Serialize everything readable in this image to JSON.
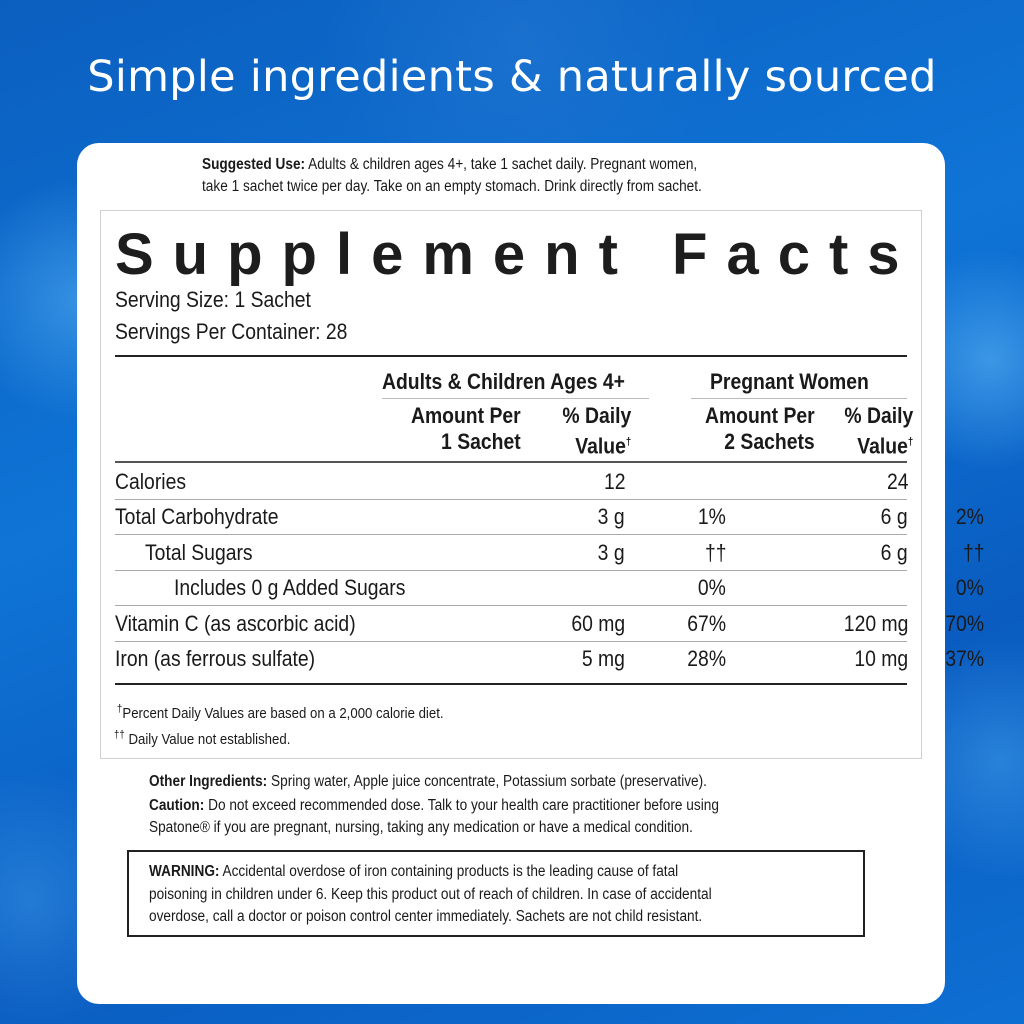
{
  "headline": "Simple ingredients & naturally sourced",
  "suggested_use": {
    "label": "Suggested Use:",
    "line1": "Adults & children ages 4+, take 1 sachet daily. Pregnant women,",
    "line2": "take 1 sachet twice per day. Take on an empty stomach. Drink directly from sachet."
  },
  "facts": {
    "title": "Supplement Facts",
    "serving_size": "Serving Size: 1 Sachet",
    "servings_per_container": "Servings Per Container: 28",
    "group1": "Adults & Children Ages 4+",
    "group2": "Pregnant Women",
    "amount1": [
      "Amount Per",
      "1 Sachet"
    ],
    "amount2": [
      "Amount Per",
      "2 Sachets"
    ],
    "dv": [
      "% Daily",
      "Value"
    ],
    "dagger": "†",
    "rows": [
      {
        "name": "Calories",
        "a1": "12",
        "d1": "",
        "a2": "24",
        "d2": ""
      },
      {
        "name": "Total Carbohydrate",
        "a1": "3 g",
        "d1": "1%",
        "a2": "6 g",
        "d2": "2%"
      },
      {
        "name": "Total Sugars",
        "a1": "3 g",
        "d1": "††",
        "a2": "6 g",
        "d2": "††"
      },
      {
        "name": "Includes 0 g Added Sugars",
        "a1": "",
        "d1": "0%",
        "a2": "",
        "d2": "0%"
      },
      {
        "name": "Vitamin C (as ascorbic acid)",
        "a1": "60 mg",
        "d1": "67%",
        "a2": "120 mg",
        "d2": "70%"
      },
      {
        "name": "Iron (as ferrous sulfate)",
        "a1": "5 mg",
        "d1": "28%",
        "a2": "10 mg",
        "d2": "37%"
      }
    ],
    "footnote1": "Percent Daily Values are based on a 2,000 calorie diet.",
    "footnote2_mark": "††",
    "footnote2": "Daily Value not established."
  },
  "other_ingredients": {
    "label": "Other Ingredients:",
    "text": "Spring water, Apple juice concentrate, Potassium sorbate (preservative)."
  },
  "caution": {
    "label": "Caution:",
    "line1": "Do not exceed recommended dose. Talk to your health care practitioner before using",
    "line2": "Spatone® if you are pregnant, nursing, taking any medication or have a medical condition."
  },
  "warning": {
    "label": "WARNING:",
    "line1": "Accidental overdose of iron containing products is the leading cause of fatal",
    "line2": "poisoning in children under 6. Keep this product out of reach of children. In case of accidental",
    "line3": "overdose, call a doctor or poison control center immediately. Sachets are not child resistant."
  }
}
